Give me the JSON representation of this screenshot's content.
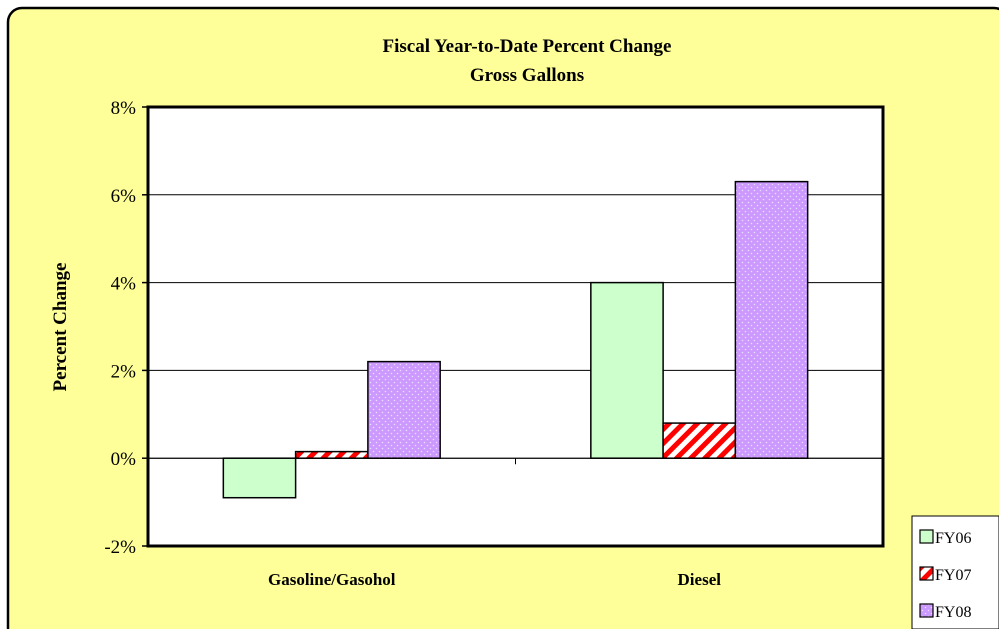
{
  "chart_data": {
    "type": "bar",
    "title": "Fiscal Year-to-Date Percent Change",
    "subtitle": "Gross Gallons",
    "ylabel": "Percent Change",
    "xlabel": "",
    "categories": [
      "Gasoline/Gasohol",
      "Diesel"
    ],
    "series": [
      {
        "name": "FY06",
        "values": [
          -0.9,
          4.0
        ],
        "color": "#ccffcc",
        "pattern": "solid"
      },
      {
        "name": "FY07",
        "values": [
          0.15,
          0.8
        ],
        "color": "#ff0000",
        "pattern": "diagonal-stripes"
      },
      {
        "name": "FY08",
        "values": [
          2.2,
          6.3
        ],
        "color": "#cc99ff",
        "pattern": "dots"
      }
    ],
    "ylim": [
      -2,
      8
    ],
    "yticks": [
      -2,
      0,
      2,
      4,
      6,
      8
    ],
    "ytick_labels": [
      "-2%",
      "0%",
      "2%",
      "4%",
      "6%",
      "8%"
    ],
    "grid": true,
    "legend_position": "bottom-right",
    "colors": {
      "background": "#ffff99",
      "plot_background": "#ffffff",
      "border": "#000000"
    }
  }
}
